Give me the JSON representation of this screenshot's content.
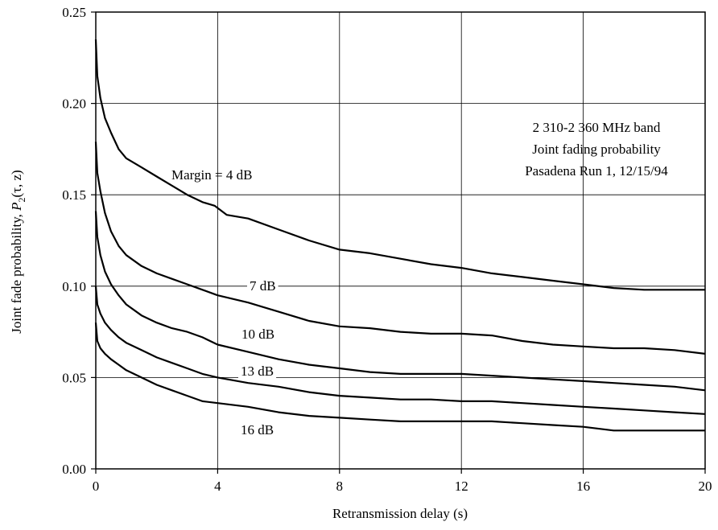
{
  "chart_data": {
    "type": "line",
    "title": "",
    "xlabel": "Retransmission delay (s)",
    "ylabel": {
      "main": "Joint fade probability, ",
      "p": "P",
      "sub": "2",
      "args": "(τ, z)"
    },
    "xlim": [
      0,
      20
    ],
    "ylim": [
      0,
      0.25
    ],
    "x_ticks": [
      "0",
      "4",
      "8",
      "12",
      "16",
      "20"
    ],
    "y_ticks": [
      "0.00",
      "0.05",
      "0.10",
      "0.15",
      "0.20",
      "0.25"
    ],
    "grid": true,
    "annotation": [
      "2 310-2 360 MHz band",
      "Joint fading probability",
      "Pasadena Run 1, 12/15/94"
    ],
    "series": [
      {
        "name": "Margin = 4 dB",
        "points": [
          [
            0,
            0.235
          ],
          [
            0.05,
            0.215
          ],
          [
            0.15,
            0.203
          ],
          [
            0.3,
            0.192
          ],
          [
            0.5,
            0.184
          ],
          [
            0.75,
            0.175
          ],
          [
            1,
            0.17
          ],
          [
            1.5,
            0.165
          ],
          [
            2,
            0.16
          ],
          [
            2.5,
            0.155
          ],
          [
            3,
            0.15
          ],
          [
            3.5,
            0.146
          ],
          [
            3.9,
            0.144
          ],
          [
            4.3,
            0.139
          ],
          [
            5,
            0.137
          ],
          [
            6,
            0.131
          ],
          [
            7,
            0.125
          ],
          [
            8,
            0.12
          ],
          [
            9,
            0.118
          ],
          [
            10,
            0.115
          ],
          [
            11,
            0.112
          ],
          [
            12,
            0.11
          ],
          [
            13,
            0.107
          ],
          [
            14,
            0.105
          ],
          [
            15,
            0.103
          ],
          [
            16,
            0.101
          ],
          [
            17,
            0.099
          ],
          [
            18,
            0.098
          ],
          [
            19,
            0.098
          ],
          [
            20,
            0.098
          ]
        ]
      },
      {
        "name": "7 dB",
        "points": [
          [
            0,
            0.179
          ],
          [
            0.05,
            0.162
          ],
          [
            0.15,
            0.152
          ],
          [
            0.3,
            0.14
          ],
          [
            0.5,
            0.13
          ],
          [
            0.75,
            0.122
          ],
          [
            1,
            0.117
          ],
          [
            1.5,
            0.111
          ],
          [
            2,
            0.107
          ],
          [
            2.5,
            0.104
          ],
          [
            3,
            0.101
          ],
          [
            3.5,
            0.098
          ],
          [
            4,
            0.095
          ],
          [
            5,
            0.091
          ],
          [
            6,
            0.086
          ],
          [
            7,
            0.081
          ],
          [
            8,
            0.078
          ],
          [
            9,
            0.077
          ],
          [
            10,
            0.075
          ],
          [
            11,
            0.074
          ],
          [
            12,
            0.074
          ],
          [
            13,
            0.073
          ],
          [
            14,
            0.07
          ],
          [
            15,
            0.068
          ],
          [
            16,
            0.067
          ],
          [
            17,
            0.066
          ],
          [
            18,
            0.066
          ],
          [
            19,
            0.065
          ],
          [
            20,
            0.063
          ]
        ]
      },
      {
        "name": "10 dB",
        "points": [
          [
            0,
            0.141
          ],
          [
            0.05,
            0.127
          ],
          [
            0.15,
            0.117
          ],
          [
            0.3,
            0.108
          ],
          [
            0.5,
            0.101
          ],
          [
            0.75,
            0.095
          ],
          [
            1,
            0.09
          ],
          [
            1.5,
            0.084
          ],
          [
            2,
            0.08
          ],
          [
            2.5,
            0.077
          ],
          [
            3,
            0.075
          ],
          [
            3.5,
            0.072
          ],
          [
            4,
            0.068
          ],
          [
            5,
            0.064
          ],
          [
            6,
            0.06
          ],
          [
            7,
            0.057
          ],
          [
            8,
            0.055
          ],
          [
            9,
            0.053
          ],
          [
            10,
            0.052
          ],
          [
            11,
            0.052
          ],
          [
            12,
            0.052
          ],
          [
            13,
            0.051
          ],
          [
            14,
            0.05
          ],
          [
            15,
            0.049
          ],
          [
            16,
            0.048
          ],
          [
            17,
            0.047
          ],
          [
            18,
            0.046
          ],
          [
            19,
            0.045
          ],
          [
            20,
            0.043
          ]
        ]
      },
      {
        "name": "13 dB",
        "points": [
          [
            0,
            0.1
          ],
          [
            0.05,
            0.09
          ],
          [
            0.15,
            0.085
          ],
          [
            0.3,
            0.08
          ],
          [
            0.5,
            0.076
          ],
          [
            0.75,
            0.072
          ],
          [
            1,
            0.069
          ],
          [
            1.5,
            0.065
          ],
          [
            2,
            0.061
          ],
          [
            2.5,
            0.058
          ],
          [
            3,
            0.055
          ],
          [
            3.5,
            0.052
          ],
          [
            4,
            0.05
          ],
          [
            5,
            0.047
          ],
          [
            6,
            0.045
          ],
          [
            7,
            0.042
          ],
          [
            8,
            0.04
          ],
          [
            9,
            0.039
          ],
          [
            10,
            0.038
          ],
          [
            11,
            0.038
          ],
          [
            12,
            0.037
          ],
          [
            13,
            0.037
          ],
          [
            14,
            0.036
          ],
          [
            15,
            0.035
          ],
          [
            16,
            0.034
          ],
          [
            17,
            0.033
          ],
          [
            18,
            0.032
          ],
          [
            19,
            0.031
          ],
          [
            20,
            0.03
          ]
        ]
      },
      {
        "name": "16 dB",
        "points": [
          [
            0,
            0.08
          ],
          [
            0.05,
            0.07
          ],
          [
            0.15,
            0.066
          ],
          [
            0.3,
            0.063
          ],
          [
            0.5,
            0.06
          ],
          [
            0.75,
            0.057
          ],
          [
            1,
            0.054
          ],
          [
            1.5,
            0.05
          ],
          [
            2,
            0.046
          ],
          [
            2.5,
            0.043
          ],
          [
            3,
            0.04
          ],
          [
            3.5,
            0.037
          ],
          [
            4,
            0.036
          ],
          [
            5,
            0.034
          ],
          [
            6,
            0.031
          ],
          [
            7,
            0.029
          ],
          [
            8,
            0.028
          ],
          [
            9,
            0.027
          ],
          [
            10,
            0.026
          ],
          [
            11,
            0.026
          ],
          [
            12,
            0.026
          ],
          [
            13,
            0.026
          ],
          [
            14,
            0.025
          ],
          [
            15,
            0.024
          ],
          [
            16,
            0.023
          ],
          [
            17,
            0.021
          ],
          [
            18,
            0.021
          ],
          [
            19,
            0.021
          ],
          [
            20,
            0.021
          ]
        ]
      }
    ]
  }
}
